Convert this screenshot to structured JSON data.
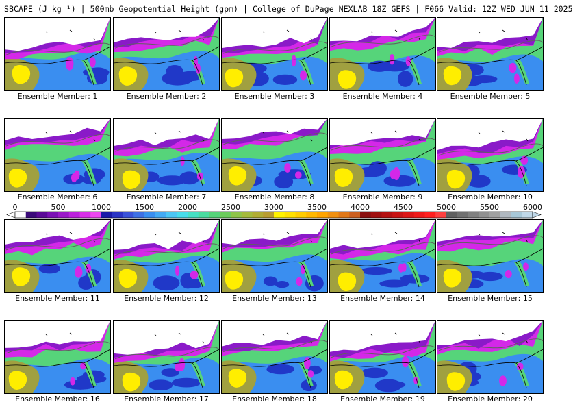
{
  "header": {
    "title": "SBCAPE (J kg⁻¹) | 500mb Geopotential Height (gpm) | College of DuPage NEXLAB 18Z GEFS | F066 Valid: 12Z WED JUN 11 2025"
  },
  "label_prefix": "Ensemble Member: ",
  "members": [
    "1",
    "2",
    "3",
    "4",
    "5",
    "6",
    "7",
    "8",
    "9",
    "10",
    "11",
    "12",
    "13",
    "14",
    "15",
    "16",
    "17",
    "18",
    "19",
    "20"
  ],
  "colorbar": {
    "ticks": [
      "0",
      "500",
      "1000",
      "1500",
      "2000",
      "2500",
      "3000",
      "3500",
      "4000",
      "4500",
      "5000",
      "5500",
      "6000"
    ],
    "range": [
      0,
      6000
    ],
    "colors": [
      "#ffffff",
      "#3a0a78",
      "#5a0a96",
      "#7a10b4",
      "#9a18c8",
      "#bb22dc",
      "#d830e8",
      "#ec48f0",
      "#1a1aa8",
      "#2a34c4",
      "#3a52d8",
      "#3e70e4",
      "#3a8ef0",
      "#44aaf4",
      "#4cc6f4",
      "#48dcea",
      "#46e0c4",
      "#4adca0",
      "#56d47a",
      "#6ccc5c",
      "#8ec448",
      "#a4ba3c",
      "#b0ac34",
      "#b89c30",
      "#fff200",
      "#ffe000",
      "#ffcc00",
      "#ffb800",
      "#ffa400",
      "#f09010",
      "#e07818",
      "#cc6020",
      "#8a1010",
      "#a01010",
      "#b41212",
      "#c81414",
      "#dc1616",
      "#ee1a1a",
      "#ff2020",
      "#ff4040",
      "#606060",
      "#707070",
      "#808080",
      "#909090",
      "#a0a0a0",
      "#b0b8c0",
      "#a8c8d8",
      "#c0d8e8"
    ]
  },
  "map": {
    "no_data_color": "#ffffff",
    "low_cape_color": "#d428e8",
    "dark_purple": "#8a1ac8",
    "ocean_blue": "#3a8ef0",
    "deep_blue": "#2038c8",
    "green": "#56d47a",
    "olive": "#a0a040",
    "yellow": "#ffee00",
    "contour_color": "#606060",
    "border_color": "#000000"
  }
}
